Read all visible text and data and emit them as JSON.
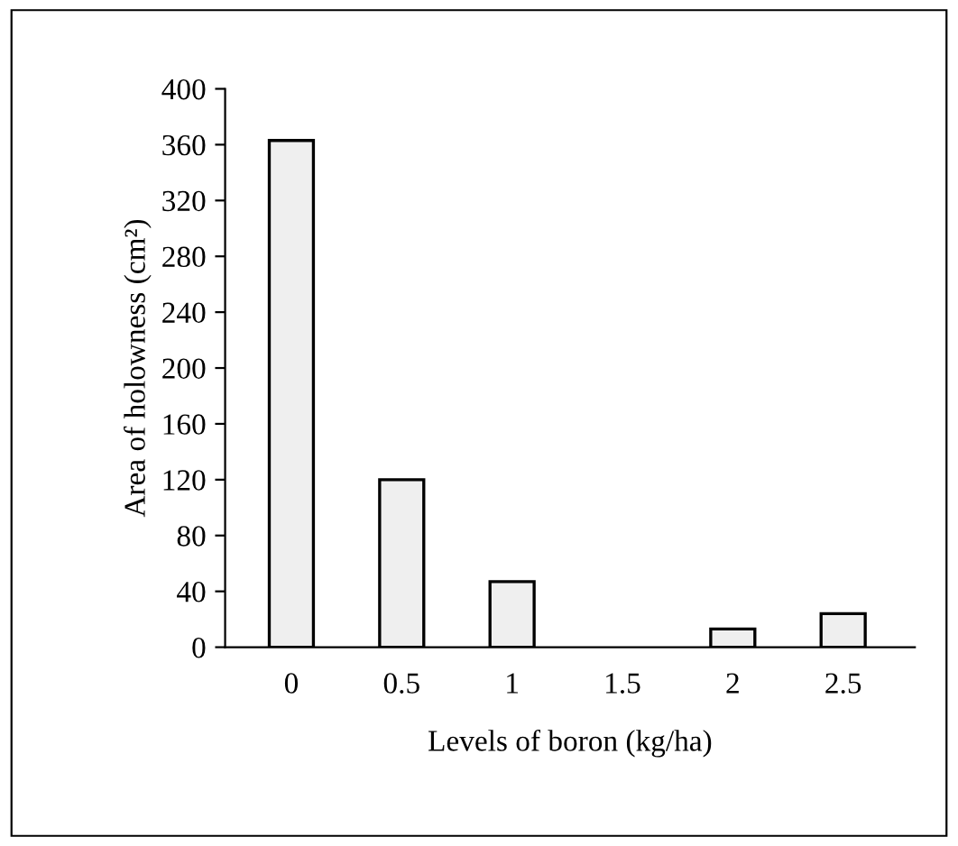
{
  "chart_data": {
    "type": "bar",
    "xlabel": "Levels of boron (kg/ha)",
    "ylabel": "Area of holowness (cm²)",
    "categories": [
      "0",
      "0.5",
      "1",
      "1.5",
      "2",
      "2.5"
    ],
    "values": [
      363,
      120,
      47,
      0,
      13,
      24
    ],
    "color": "#efefef",
    "ylim": [
      0,
      400
    ],
    "yticks": [
      0,
      40,
      80,
      120,
      160,
      200,
      240,
      280,
      320,
      360,
      400
    ],
    "grid": false,
    "legend": false
  }
}
